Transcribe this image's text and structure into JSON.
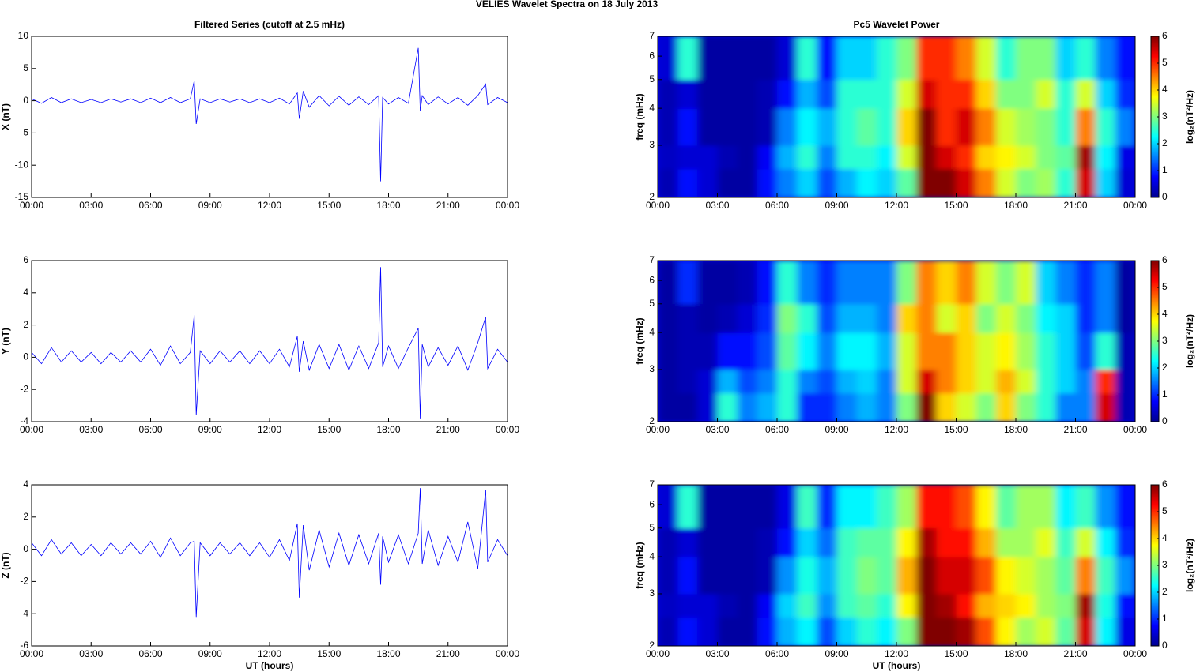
{
  "title": "VELIES Wavelet Spectra on 18 July 2013",
  "chart_data": [
    {
      "type": "line",
      "title": "Filtered Series (cutoff at 2.5 mHz)",
      "y_label": "X (nT)",
      "color": "#0000ff",
      "xlim": [
        0,
        24
      ],
      "xticks": [
        {
          "value": 0,
          "label": "00:00"
        },
        {
          "value": 3,
          "label": "03:00"
        },
        {
          "value": 6,
          "label": "06:00"
        },
        {
          "value": 9,
          "label": "09:00"
        },
        {
          "value": 12,
          "label": "12:00"
        },
        {
          "value": 15,
          "label": "15:00"
        },
        {
          "value": 18,
          "label": "18:00"
        },
        {
          "value": 21,
          "label": "21:00"
        },
        {
          "value": 24,
          "label": "00:00"
        }
      ],
      "ylim": [
        -15,
        10
      ],
      "yticks": [
        -15,
        -10,
        -5,
        0,
        5,
        10
      ],
      "x": [
        0,
        0.5,
        1,
        1.5,
        2,
        2.5,
        3,
        3.5,
        4,
        4.5,
        5,
        5.5,
        6,
        6.5,
        7,
        7.5,
        8,
        8.2,
        8.3,
        8.5,
        9,
        9.5,
        10,
        10.5,
        11,
        11.5,
        12,
        12.5,
        13,
        13.4,
        13.5,
        13.7,
        14,
        14.5,
        15,
        15.5,
        16,
        16.5,
        17,
        17.5,
        17.6,
        17.7,
        18,
        18.5,
        19,
        19.5,
        19.6,
        19.7,
        20,
        20.5,
        21,
        21.5,
        22,
        22.5,
        22.9,
        23,
        23.5,
        24
      ],
      "values": [
        0.3,
        -0.4,
        0.5,
        -0.3,
        0.3,
        -0.3,
        0.2,
        -0.3,
        0.3,
        -0.2,
        0.3,
        -0.3,
        0.4,
        -0.3,
        0.5,
        -0.3,
        0.3,
        3.1,
        -3.6,
        0.3,
        -0.3,
        0.3,
        -0.2,
        0.3,
        -0.3,
        0.3,
        -0.3,
        0.4,
        -0.5,
        1.2,
        -2.8,
        1.5,
        -1.0,
        0.8,
        -0.8,
        0.7,
        -0.7,
        0.6,
        -0.6,
        0.8,
        -12.5,
        0.5,
        -0.5,
        0.5,
        -0.4,
        8.2,
        -1.6,
        0.8,
        -0.6,
        0.6,
        -0.5,
        0.5,
        -0.7,
        0.8,
        2.6,
        -0.6,
        0.5,
        -0.3
      ]
    },
    {
      "type": "heatmap",
      "title": "Pc5 Wavelet Power",
      "y_label": "freq (mHz)",
      "colorbar_label": "log₂(nT²/Hz)",
      "xlim": [
        0,
        24
      ],
      "xticks": [
        {
          "value": 0,
          "label": "00:00"
        },
        {
          "value": 3,
          "label": "03:00"
        },
        {
          "value": 6,
          "label": "06:00"
        },
        {
          "value": 9,
          "label": "09:00"
        },
        {
          "value": 12,
          "label": "12:00"
        },
        {
          "value": 15,
          "label": "15:00"
        },
        {
          "value": 18,
          "label": "18:00"
        },
        {
          "value": 21,
          "label": "21:00"
        },
        {
          "value": 24,
          "label": "00:00"
        }
      ],
      "ylim": [
        2,
        7
      ],
      "yticks": [
        2,
        3,
        4,
        5,
        6,
        7
      ],
      "ylog": true,
      "clim": [
        0,
        6
      ],
      "cticks": [
        0,
        1,
        2,
        3,
        4,
        5,
        6
      ],
      "time_bins": [
        0,
        1,
        2,
        3,
        4,
        5,
        6,
        7,
        8,
        9,
        10,
        11,
        12,
        13,
        14,
        15,
        16,
        17,
        18,
        19,
        20,
        21,
        22,
        23,
        24
      ],
      "freq_bins": [
        2,
        2.5,
        3,
        4,
        5,
        7
      ],
      "z": [
        [
          0.3,
          0.8,
          0.5,
          0.2,
          0.2,
          0.8,
          1.5,
          2.0,
          1.2,
          1.8,
          2.2,
          2.0,
          2.8,
          6,
          6,
          5.5,
          4.5,
          3.5,
          3.0,
          3.2,
          2.5,
          5.5,
          2.0,
          0.5
        ],
        [
          0.4,
          0.5,
          0.5,
          0.3,
          0.2,
          0.7,
          1.8,
          2.5,
          1.5,
          2.5,
          2.5,
          2.2,
          3.5,
          6,
          5.5,
          5,
          4,
          3.8,
          3.5,
          3,
          2.8,
          5.8,
          2.2,
          0.6
        ],
        [
          0.3,
          0.8,
          0.2,
          0.2,
          0.2,
          0.3,
          1.5,
          2.2,
          1.8,
          2.5,
          2.8,
          2.5,
          4,
          6,
          5,
          5.5,
          4.5,
          3.5,
          3.2,
          3,
          2.5,
          4.5,
          2.5,
          1.5
        ],
        [
          0.3,
          0.5,
          0.2,
          0.2,
          0.2,
          0.3,
          0.8,
          1.8,
          1.2,
          2.5,
          2.5,
          2.5,
          3.5,
          5.5,
          5,
          5,
          4,
          3,
          3,
          3.5,
          2.5,
          3.5,
          2,
          1
        ],
        [
          0.5,
          2.5,
          0.2,
          0.2,
          0.2,
          0.2,
          0.5,
          2.5,
          0.8,
          2,
          2,
          2.5,
          3,
          5,
          5,
          4.5,
          3.5,
          2.5,
          3,
          3,
          2,
          2.5,
          1.5,
          0.8
        ]
      ]
    },
    {
      "type": "line",
      "y_label": "Y (nT)",
      "color": "#0000ff",
      "xlim": [
        0,
        24
      ],
      "xticks": [
        {
          "value": 0,
          "label": "00:00"
        },
        {
          "value": 3,
          "label": "03:00"
        },
        {
          "value": 6,
          "label": "06:00"
        },
        {
          "value": 9,
          "label": "09:00"
        },
        {
          "value": 12,
          "label": "12:00"
        },
        {
          "value": 15,
          "label": "15:00"
        },
        {
          "value": 18,
          "label": "18:00"
        },
        {
          "value": 21,
          "label": "21:00"
        },
        {
          "value": 24,
          "label": "00:00"
        }
      ],
      "ylim": [
        -4,
        6
      ],
      "yticks": [
        -4,
        -2,
        0,
        2,
        4,
        6
      ],
      "x": [
        0,
        0.5,
        1,
        1.5,
        2,
        2.5,
        3,
        3.5,
        4,
        4.5,
        5,
        5.5,
        6,
        6.5,
        7,
        7.5,
        8,
        8.2,
        8.3,
        8.5,
        9,
        9.5,
        10,
        10.5,
        11,
        11.5,
        12,
        12.5,
        13,
        13.4,
        13.5,
        13.7,
        14,
        14.5,
        15,
        15.5,
        16,
        16.5,
        17,
        17.5,
        17.6,
        17.7,
        18,
        18.5,
        19,
        19.5,
        19.6,
        19.7,
        20,
        20.5,
        21,
        21.5,
        22,
        22.5,
        22.9,
        23,
        23.5,
        24
      ],
      "values": [
        0.3,
        -0.4,
        0.6,
        -0.3,
        0.4,
        -0.3,
        0.3,
        -0.4,
        0.3,
        -0.3,
        0.4,
        -0.3,
        0.5,
        -0.5,
        0.7,
        -0.4,
        0.3,
        2.6,
        -3.6,
        0.4,
        -0.4,
        0.4,
        -0.3,
        0.4,
        -0.4,
        0.4,
        -0.4,
        0.5,
        -0.6,
        1.3,
        -0.9,
        1.0,
        -0.8,
        0.8,
        -0.7,
        0.8,
        -0.8,
        0.7,
        -0.7,
        0.9,
        5.6,
        -0.6,
        0.7,
        -0.7,
        0.6,
        1.8,
        -3.8,
        0.8,
        -0.6,
        0.6,
        -0.5,
        0.7,
        -0.8,
        0.9,
        2.5,
        -0.7,
        0.5,
        -0.3
      ]
    },
    {
      "type": "heatmap",
      "y_label": "freq (mHz)",
      "colorbar_label": "log₂(nT²/Hz)",
      "xlim": [
        0,
        24
      ],
      "xticks": [
        {
          "value": 0,
          "label": "00:00"
        },
        {
          "value": 3,
          "label": "03:00"
        },
        {
          "value": 6,
          "label": "06:00"
        },
        {
          "value": 9,
          "label": "09:00"
        },
        {
          "value": 12,
          "label": "12:00"
        },
        {
          "value": 15,
          "label": "15:00"
        },
        {
          "value": 18,
          "label": "18:00"
        },
        {
          "value": 21,
          "label": "21:00"
        },
        {
          "value": 24,
          "label": "00:00"
        }
      ],
      "ylim": [
        2,
        7
      ],
      "yticks": [
        2,
        3,
        4,
        5,
        6,
        7
      ],
      "ylog": true,
      "clim": [
        0,
        6
      ],
      "cticks": [
        0,
        1,
        2,
        3,
        4,
        5,
        6
      ],
      "time_bins": [
        0,
        1,
        2,
        3,
        4,
        5,
        6,
        7,
        8,
        9,
        10,
        11,
        12,
        13,
        14,
        15,
        16,
        17,
        18,
        19,
        20,
        21,
        22,
        23,
        24
      ],
      "freq_bins": [
        2,
        2.5,
        3,
        4,
        5,
        7
      ],
      "z": [
        [
          0.2,
          0.2,
          0.5,
          2.5,
          1.5,
          1.8,
          2.5,
          1.0,
          1.0,
          1.5,
          1.8,
          1.5,
          3,
          6,
          4,
          3.5,
          3,
          4,
          3,
          2.5,
          1.5,
          1.5,
          5.5,
          0.3
        ],
        [
          0.2,
          0.3,
          0.5,
          1.8,
          1.2,
          1.5,
          2.5,
          1.5,
          1.2,
          1.8,
          2.0,
          1.5,
          3.5,
          5.5,
          4.5,
          4,
          3.5,
          4.2,
          3.5,
          2.5,
          2,
          1.5,
          5,
          0.3
        ],
        [
          0.2,
          0.3,
          0.3,
          0.8,
          0.8,
          1.2,
          2.8,
          2.2,
          1.5,
          2.2,
          2.2,
          1.8,
          3.5,
          4.5,
          4.5,
          4,
          3.5,
          3.8,
          3.2,
          2.5,
          2.0,
          1.2,
          2.5,
          0.3
        ],
        [
          0.2,
          0.3,
          0.2,
          0.3,
          0.5,
          1.0,
          3.0,
          2.5,
          1.2,
          1.8,
          1.8,
          1.5,
          4,
          4.5,
          3.5,
          4,
          3,
          3.5,
          3,
          2.2,
          2.0,
          1.0,
          1.5,
          0.2
        ],
        [
          0.2,
          1.0,
          0.2,
          0.2,
          0.3,
          0.8,
          2.5,
          1.5,
          1.0,
          1.5,
          1.5,
          1.5,
          3,
          4.5,
          4,
          4.5,
          3.5,
          3,
          3.5,
          2,
          1.5,
          1.0,
          1.5,
          0.2
        ]
      ]
    },
    {
      "type": "line",
      "y_label": "Z (nT)",
      "x_label": "UT (hours)",
      "color": "#0000ff",
      "xlim": [
        0,
        24
      ],
      "xticks": [
        {
          "value": 0,
          "label": "00:00"
        },
        {
          "value": 3,
          "label": "03:00"
        },
        {
          "value": 6,
          "label": "06:00"
        },
        {
          "value": 9,
          "label": "09:00"
        },
        {
          "value": 12,
          "label": "12:00"
        },
        {
          "value": 15,
          "label": "15:00"
        },
        {
          "value": 18,
          "label": "18:00"
        },
        {
          "value": 21,
          "label": "21:00"
        },
        {
          "value": 24,
          "label": "00:00"
        }
      ],
      "ylim": [
        -6,
        4
      ],
      "yticks": [
        -6,
        -4,
        -2,
        0,
        2,
        4
      ],
      "x": [
        0,
        0.5,
        1,
        1.5,
        2,
        2.5,
        3,
        3.5,
        4,
        4.5,
        5,
        5.5,
        6,
        6.5,
        7,
        7.5,
        8,
        8.2,
        8.3,
        8.5,
        9,
        9.5,
        10,
        10.5,
        11,
        11.5,
        12,
        12.5,
        13,
        13.4,
        13.5,
        13.7,
        14,
        14.5,
        15,
        15.5,
        16,
        16.5,
        17,
        17.5,
        17.6,
        17.7,
        18,
        18.5,
        19,
        19.5,
        19.6,
        19.7,
        20,
        20.5,
        21,
        21.5,
        22,
        22.5,
        22.9,
        23,
        23.5,
        24
      ],
      "values": [
        0.4,
        -0.4,
        0.6,
        -0.3,
        0.4,
        -0.4,
        0.3,
        -0.4,
        0.4,
        -0.3,
        0.4,
        -0.3,
        0.5,
        -0.5,
        0.7,
        -0.4,
        0.4,
        0.5,
        -4.2,
        0.4,
        -0.4,
        0.4,
        -0.3,
        0.4,
        -0.4,
        0.4,
        -0.5,
        0.6,
        -0.7,
        1.6,
        -3.0,
        1.5,
        -1.3,
        1.2,
        -1.1,
        1.0,
        -1.0,
        0.9,
        -0.9,
        1.0,
        -2.2,
        0.8,
        -0.8,
        0.9,
        -0.9,
        1.0,
        3.8,
        -0.9,
        1.2,
        -1.0,
        0.8,
        -0.8,
        1.7,
        -1.2,
        3.7,
        -0.8,
        0.6,
        -0.4
      ]
    },
    {
      "type": "heatmap",
      "y_label": "freq (mHz)",
      "x_label": "UT (hours)",
      "colorbar_label": "log₂(nT²/Hz)",
      "xlim": [
        0,
        24
      ],
      "xticks": [
        {
          "value": 0,
          "label": "00:00"
        },
        {
          "value": 3,
          "label": "03:00"
        },
        {
          "value": 6,
          "label": "06:00"
        },
        {
          "value": 9,
          "label": "09:00"
        },
        {
          "value": 12,
          "label": "12:00"
        },
        {
          "value": 15,
          "label": "15:00"
        },
        {
          "value": 18,
          "label": "18:00"
        },
        {
          "value": 21,
          "label": "21:00"
        },
        {
          "value": 24,
          "label": "00:00"
        }
      ],
      "ylim": [
        2,
        7
      ],
      "yticks": [
        2,
        3,
        4,
        5,
        6,
        7
      ],
      "ylog": true,
      "clim": [
        0,
        6
      ],
      "cticks": [
        0,
        1,
        2,
        3,
        4,
        5,
        6
      ],
      "time_bins": [
        0,
        1,
        2,
        3,
        4,
        5,
        6,
        7,
        8,
        9,
        10,
        11,
        12,
        13,
        14,
        15,
        16,
        17,
        18,
        19,
        20,
        21,
        22,
        23,
        24
      ],
      "freq_bins": [
        2,
        2.5,
        3,
        4,
        5,
        7
      ],
      "z": [
        [
          0.3,
          0.8,
          0.5,
          0.2,
          0.2,
          0.8,
          1.8,
          2.2,
          1.2,
          2.0,
          2.5,
          2.2,
          3.0,
          6,
          6,
          5.8,
          4.8,
          3.8,
          3.2,
          3.5,
          2.8,
          5.5,
          2.2,
          0.6
        ],
        [
          0.4,
          0.5,
          0.5,
          0.3,
          0.2,
          0.7,
          2.0,
          2.6,
          1.6,
          2.6,
          2.8,
          2.5,
          3.8,
          6,
          5.8,
          5.2,
          4.2,
          4.0,
          3.8,
          3.2,
          3.0,
          5.8,
          2.4,
          0.8
        ],
        [
          0.3,
          0.8,
          0.2,
          0.2,
          0.2,
          0.3,
          1.6,
          2.4,
          1.8,
          2.6,
          3.0,
          2.8,
          4.2,
          6,
          5.5,
          5.5,
          4.8,
          3.8,
          3.5,
          3.2,
          2.8,
          4.5,
          2.6,
          1.6
        ],
        [
          0.3,
          0.5,
          0.2,
          0.2,
          0.2,
          0.3,
          0.8,
          2.0,
          1.4,
          2.6,
          2.8,
          2.8,
          3.8,
          5.8,
          5.2,
          5.2,
          4.2,
          3.2,
          3.2,
          3.6,
          2.6,
          3.5,
          2.2,
          1.0
        ],
        [
          0.5,
          2.5,
          0.2,
          0.2,
          0.2,
          0.2,
          0.6,
          2.6,
          1.0,
          2.2,
          2.2,
          2.6,
          3.2,
          5.2,
          5.2,
          4.8,
          3.8,
          2.8,
          3.2,
          3.2,
          2.2,
          2.6,
          1.6,
          0.8
        ]
      ]
    }
  ]
}
